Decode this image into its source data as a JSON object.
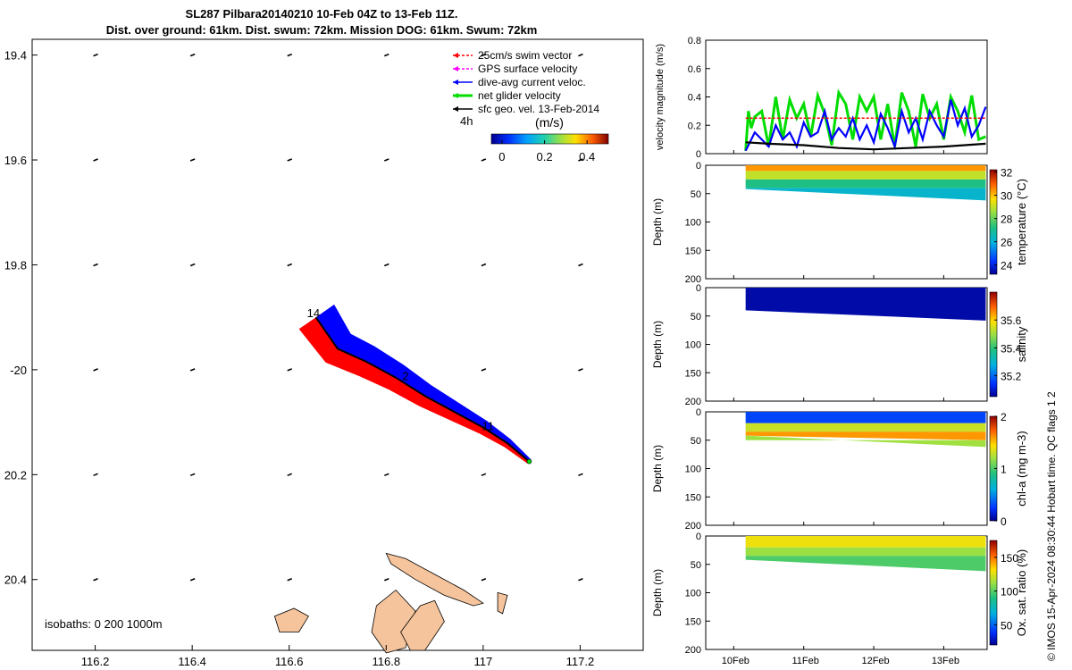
{
  "header": {
    "title_line1": "SL287 Pilbara20140210 10-Feb 04Z to 13-Feb 11Z.",
    "title_line2": "Dist. over ground: 61km. Dist. swum: 72km. Mission DOG: 61km. Swum: 72km"
  },
  "credit": "© IMOS 15-Apr-2024 08:30:44 Hobart time. QC flags 1  2",
  "colors": {
    "swim": "#ff0000",
    "gps": "#ff00ff",
    "dive_avg": "#0000ff",
    "net_glider": "#00dd00",
    "sfc_geo": "#000000",
    "land": "#f5c49c",
    "track_red": "#ff0000",
    "track_blue": "#0000ff"
  },
  "chart_data": [
    {
      "type": "map",
      "name": "glider track map",
      "xlim": [
        116.07,
        117.33
      ],
      "ylim": [
        19.37,
        20.535
      ],
      "y_reversed": true,
      "x_ticks": [
        116.2,
        116.4,
        116.6,
        116.8,
        117,
        117.2
      ],
      "x_tick_labels": [
        "116.2",
        "116.4",
        "116.6",
        "116.8",
        "117",
        "117.2"
      ],
      "y_ticks": [
        19.4,
        19.6,
        19.8,
        20.0,
        20.2,
        20.4
      ],
      "y_tick_labels": [
        "19.4",
        "19.6",
        "19.8",
        "-20",
        "20.2",
        "20.4"
      ],
      "legend": {
        "position": "top-right",
        "entries": [
          {
            "label": "25cm/s swim vector",
            "color_key": "swim"
          },
          {
            "label": "GPS surface velocity",
            "color_key": "gps"
          },
          {
            "label": "dive-avg current veloc.",
            "color_key": "dive_avg"
          },
          {
            "label": "net glider velocity",
            "color_key": "net_glider"
          },
          {
            "label": "sfc geo. vel. 13-Feb-2014",
            "color_key": "sfc_geo"
          }
        ],
        "time_step_label": "4h",
        "colorbar_title": "(m/s)",
        "colorbar_ticks": [
          0,
          0.2,
          0.4
        ],
        "colorbar_tick_labels": [
          "0",
          "0.2",
          "0.4"
        ],
        "colorbar_range": [
          -0.05,
          0.5
        ]
      },
      "isobath_note": "isobaths: 0   200  1000m",
      "track_labels": [
        {
          "text": "14",
          "lon": 116.65,
          "lat": 19.9
        },
        {
          "text": "2",
          "lon": 116.84,
          "lat": 20.02
        },
        {
          "text": "11",
          "lon": 117.01,
          "lat": 20.115
        }
      ],
      "track": {
        "lon": [
          116.655,
          116.7,
          116.76,
          116.82,
          116.88,
          116.94,
          117.0,
          117.05,
          117.095
        ],
        "lat": [
          19.9,
          19.96,
          19.985,
          20.015,
          20.05,
          20.08,
          20.11,
          20.14,
          20.175
        ]
      },
      "geo_vector_grid": {
        "lons": [
          116.2,
          116.4,
          116.6,
          116.8,
          117.0,
          117.2
        ],
        "lats": [
          19.4,
          19.6,
          19.8,
          20.0,
          20.2,
          20.4
        ]
      },
      "islands": [
        {
          "lon": [
            116.8,
            116.84,
            116.9,
            116.96,
            117.0,
            116.98,
            116.92,
            116.86,
            116.81
          ],
          "lat": [
            20.35,
            20.36,
            20.39,
            20.42,
            20.445,
            20.45,
            20.43,
            20.4,
            20.37
          ]
        },
        {
          "lon": [
            116.78,
            116.82,
            116.86,
            116.84,
            116.8,
            116.77
          ],
          "lat": [
            20.45,
            20.42,
            20.46,
            20.53,
            20.54,
            20.5
          ]
        },
        {
          "lon": [
            116.83,
            116.87,
            116.9,
            116.92,
            116.88,
            116.85
          ],
          "lat": [
            20.5,
            20.45,
            20.44,
            20.48,
            20.535,
            20.535
          ]
        },
        {
          "lon": [
            116.57,
            116.61,
            116.64,
            116.62,
            116.58
          ],
          "lat": [
            20.47,
            20.455,
            20.47,
            20.5,
            20.5
          ]
        },
        {
          "lon": [
            117.03,
            117.05,
            117.04,
            117.03
          ],
          "lat": [
            20.425,
            20.43,
            20.465,
            20.46
          ]
        }
      ]
    },
    {
      "type": "line",
      "name": "velocity magnitude",
      "ylabel": "velocity magnitude (m/s)",
      "ylim": [
        0,
        0.8
      ],
      "y_ticks": [
        0,
        0.2,
        0.4,
        0.6,
        0.8
      ],
      "xlim": [
        9.6,
        13.62
      ],
      "x_ticks": [
        10,
        11,
        12,
        13
      ],
      "series": [
        {
          "name": "net glider velocity",
          "color_key": "net_glider",
          "x": [
            10.17,
            10.21,
            10.25,
            10.3,
            10.4,
            10.5,
            10.6,
            10.7,
            10.8,
            10.9,
            11.0,
            11.1,
            11.2,
            11.3,
            11.4,
            11.5,
            11.6,
            11.7,
            11.8,
            11.9,
            12.0,
            12.1,
            12.2,
            12.3,
            12.4,
            12.5,
            12.6,
            12.7,
            12.8,
            12.9,
            13.0,
            13.1,
            13.2,
            13.3,
            13.4,
            13.5,
            13.6
          ],
          "y": [
            0.02,
            0.3,
            0.18,
            0.26,
            0.3,
            0.05,
            0.4,
            0.1,
            0.38,
            0.25,
            0.35,
            0.12,
            0.41,
            0.28,
            0.06,
            0.43,
            0.35,
            0.1,
            0.4,
            0.3,
            0.4,
            0.1,
            0.35,
            0.05,
            0.43,
            0.3,
            0.05,
            0.42,
            0.25,
            0.35,
            0.1,
            0.4,
            0.3,
            0.15,
            0.41,
            0.1,
            0.12
          ]
        },
        {
          "name": "dive-avg current veloc.",
          "color_key": "dive_avg",
          "x": [
            10.17,
            10.3,
            10.4,
            10.5,
            10.6,
            10.7,
            10.8,
            10.9,
            11.0,
            11.1,
            11.2,
            11.3,
            11.4,
            11.5,
            11.6,
            11.7,
            11.8,
            11.9,
            12.0,
            12.1,
            12.2,
            12.3,
            12.4,
            12.5,
            12.6,
            12.7,
            12.8,
            12.9,
            13.0,
            13.1,
            13.2,
            13.3,
            13.4,
            13.5,
            13.6
          ],
          "y": [
            0.02,
            0.15,
            0.1,
            0.05,
            0.2,
            0.1,
            0.15,
            0.05,
            0.22,
            0.12,
            0.15,
            0.3,
            0.1,
            0.18,
            0.12,
            0.25,
            0.1,
            0.2,
            0.08,
            0.28,
            0.18,
            0.05,
            0.3,
            0.15,
            0.25,
            0.1,
            0.3,
            0.2,
            0.12,
            0.38,
            0.2,
            0.32,
            0.12,
            0.2,
            0.33
          ]
        },
        {
          "name": "25cm/s swim vector",
          "color_key": "swim",
          "x": [
            10.17,
            13.6
          ],
          "y": [
            0.25,
            0.25
          ]
        },
        {
          "name": "sfc geo. vel.",
          "color_key": "sfc_geo",
          "x": [
            10.17,
            10.5,
            11.0,
            11.5,
            12.0,
            12.5,
            13.0,
            13.3,
            13.6
          ],
          "y": [
            0.08,
            0.07,
            0.06,
            0.04,
            0.03,
            0.04,
            0.05,
            0.06,
            0.07
          ]
        }
      ]
    },
    {
      "type": "heatmap",
      "name": "temperature section",
      "ylabel": "Depth (m)",
      "ylim": [
        0,
        200
      ],
      "y_ticks": [
        0,
        50,
        100,
        150,
        200
      ],
      "colorbar_label": "temperature (°C)",
      "colorbar_range": [
        23.2,
        32.2
      ],
      "colorbar_ticks": [
        24,
        26,
        28,
        30,
        32
      ],
      "time_start": 10.17,
      "time_end": 13.6,
      "bottom_depth_start": 42,
      "bottom_depth_end": 62,
      "layers": [
        {
          "depth_from": 0,
          "depth_to": 10,
          "value": 30.4
        },
        {
          "depth_from": 10,
          "depth_to": 25,
          "value": 29.0
        },
        {
          "depth_from": 25,
          "depth_to": 40,
          "value": 27.2
        },
        {
          "depth_from": 40,
          "depth_to": 65,
          "value": 26.2
        }
      ]
    },
    {
      "type": "heatmap",
      "name": "salinity section",
      "ylabel": "Depth (m)",
      "ylim": [
        0,
        200
      ],
      "y_ticks": [
        0,
        50,
        100,
        150,
        200
      ],
      "colorbar_label": "salinity",
      "colorbar_range": [
        35.05,
        35.8
      ],
      "colorbar_ticks": [
        35.2,
        35.4,
        35.6
      ],
      "time_start": 10.17,
      "time_end": 13.6,
      "bottom_depth_start": 40,
      "bottom_depth_end": 58,
      "layers": [
        {
          "depth_from": 0,
          "depth_to": 65,
          "value": 35.07
        }
      ]
    },
    {
      "type": "heatmap",
      "name": "chlorophyll section",
      "ylabel": "Depth (m)",
      "ylim": [
        0,
        200
      ],
      "y_ticks": [
        0,
        50,
        100,
        150,
        200
      ],
      "colorbar_label": "chl-a (mg m-3)",
      "colorbar_range": [
        0,
        2
      ],
      "colorbar_ticks": [
        0,
        1,
        2
      ],
      "time_start": 10.17,
      "time_end": 13.6,
      "bottom_depth_start": 42,
      "bottom_depth_end": 62,
      "layers": [
        {
          "depth_from": 0,
          "depth_to": 20,
          "value": 0.3
        },
        {
          "depth_from": 20,
          "depth_to": 35,
          "value": 1.3
        },
        {
          "depth_from": 35,
          "depth_to": 50,
          "value": 1.6
        },
        {
          "depth_from": 50,
          "depth_to": 65,
          "value": 1.2
        }
      ]
    },
    {
      "type": "heatmap",
      "name": "oxygen section",
      "ylabel": "Depth (m)",
      "ylim": [
        0,
        200
      ],
      "y_ticks": [
        0,
        50,
        100,
        150,
        200
      ],
      "colorbar_label": "Ox. sat. ratio (%)",
      "colorbar_range": [
        20,
        175
      ],
      "colorbar_ticks": [
        50,
        100,
        150
      ],
      "x_ticks": [
        10,
        11,
        12,
        13
      ],
      "x_tick_labels": [
        "10Feb",
        "11Feb",
        "12Feb",
        "13Feb"
      ],
      "time_start": 10.17,
      "time_end": 13.6,
      "bottom_depth_start": 42,
      "bottom_depth_end": 62,
      "layers": [
        {
          "depth_from": 0,
          "depth_to": 20,
          "value": 128
        },
        {
          "depth_from": 20,
          "depth_to": 35,
          "value": 112
        },
        {
          "depth_from": 35,
          "depth_to": 65,
          "value": 98
        }
      ]
    }
  ]
}
